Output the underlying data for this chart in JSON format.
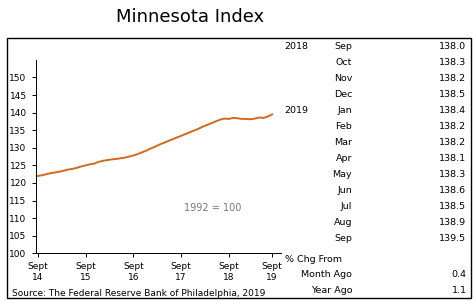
{
  "title": "Minnesota Index",
  "source": "Source: The Federal Reserve Bank of Philadelphia, 2019",
  "annotation": "1992 = 100",
  "line_color": "#d2691e",
  "ylim": [
    100,
    155
  ],
  "yticks": [
    100,
    105,
    110,
    115,
    120,
    125,
    130,
    135,
    140,
    145,
    150
  ],
  "xtick_labels": [
    "Sept\n14",
    "Sept\n15",
    "Sept\n16",
    "Sept\n17",
    "Sept\n18",
    "Sept\n19"
  ],
  "y_values": [
    122.0,
    122.2,
    122.5,
    122.8,
    123.0,
    123.2,
    123.5,
    123.8,
    124.0,
    124.3,
    124.7,
    125.0,
    125.3,
    125.5,
    126.0,
    126.3,
    126.5,
    126.7,
    126.8,
    127.0,
    127.2,
    127.5,
    127.8,
    128.2,
    128.7,
    129.2,
    129.8,
    130.3,
    130.9,
    131.4,
    131.9,
    132.4,
    132.9,
    133.4,
    133.9,
    134.4,
    134.9,
    135.4,
    136.0,
    136.5,
    137.0,
    137.5,
    138.0,
    138.3,
    138.2,
    138.5,
    138.4,
    138.2,
    138.2,
    138.1,
    138.3,
    138.6,
    138.5,
    138.9,
    139.5
  ],
  "table_2018_months": [
    "Sep",
    "Oct",
    "Nov",
    "Dec"
  ],
  "table_2018_vals": [
    "138.0",
    "138.3",
    "138.2",
    "138.5"
  ],
  "table_2019_months": [
    "Jan",
    "Feb",
    "Mar",
    "Apr",
    "May",
    "Jun",
    "Jul",
    "Aug",
    "Sep"
  ],
  "table_2019_vals": [
    "138.4",
    "138.2",
    "138.2",
    "138.1",
    "138.3",
    "138.6",
    "138.5",
    "138.9",
    "139.5"
  ],
  "pct_label": "% Chg From",
  "month_ago_label": "Month Ago",
  "month_ago_val": "0.4",
  "year_ago_label": "Year Ago",
  "year_ago_val": "1.1",
  "fontsize_table": 6.8,
  "fontsize_title": 13,
  "fontsize_source": 6.5,
  "fontsize_annot": 7,
  "fontsize_tick": 6.5
}
